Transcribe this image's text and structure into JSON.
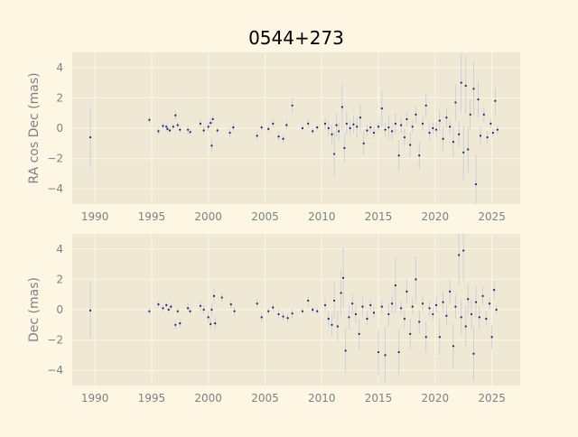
{
  "title": "0544+273",
  "colors": {
    "figure_bg": "#fdf6e3",
    "axes_bg": "#eee8d5",
    "grid": "#fdf6e3",
    "tick_text": "#7a8288",
    "point": "#1a237e",
    "errorbar": "#b8c4d6"
  },
  "chart_data": [
    {
      "type": "scatter",
      "title": "0544+273",
      "xlabel": "",
      "ylabel": "RA cos Dec (mas)",
      "xlim": [
        1988,
        2027.5
      ],
      "ylim": [
        -5,
        5
      ],
      "xticks": [
        "1990",
        "1995",
        "2000",
        "2005",
        "2010",
        "2015",
        "2020",
        "2025"
      ],
      "yticks": [
        "−4",
        "−2",
        "0",
        "2",
        "4"
      ],
      "grid": true,
      "error_bars": true,
      "points": [
        {
          "x": 1989.6,
          "y": -0.6,
          "err": 2.0
        },
        {
          "x": 1994.8,
          "y": 0.55,
          "err": 0.2
        },
        {
          "x": 1995.6,
          "y": -0.2,
          "err": 0.2
        },
        {
          "x": 1996.0,
          "y": 0.15,
          "err": 0.2
        },
        {
          "x": 1996.3,
          "y": 0.1,
          "err": 0.2
        },
        {
          "x": 1996.4,
          "y": -0.05,
          "err": 0.2
        },
        {
          "x": 1996.6,
          "y": -0.15,
          "err": 0.2
        },
        {
          "x": 1996.9,
          "y": 0.1,
          "err": 0.2
        },
        {
          "x": 1997.1,
          "y": 0.85,
          "err": 0.3
        },
        {
          "x": 1997.3,
          "y": 0.2,
          "err": 0.2
        },
        {
          "x": 1997.5,
          "y": -0.1,
          "err": 0.2
        },
        {
          "x": 1998.2,
          "y": -0.1,
          "err": 0.3
        },
        {
          "x": 1998.4,
          "y": -0.25,
          "err": 0.2
        },
        {
          "x": 1999.3,
          "y": 0.3,
          "err": 0.3
        },
        {
          "x": 1999.6,
          "y": -0.15,
          "err": 0.3
        },
        {
          "x": 2000.0,
          "y": 0.1,
          "err": 0.3
        },
        {
          "x": 2000.2,
          "y": 0.35,
          "err": 0.3
        },
        {
          "x": 2000.3,
          "y": -1.15,
          "err": 0.4
        },
        {
          "x": 2000.4,
          "y": 0.6,
          "err": 0.3
        },
        {
          "x": 2000.8,
          "y": -0.15,
          "err": 0.2
        },
        {
          "x": 2001.9,
          "y": -0.3,
          "err": 0.3
        },
        {
          "x": 2002.2,
          "y": 0.05,
          "err": 0.3
        },
        {
          "x": 2004.3,
          "y": -0.5,
          "err": 0.3
        },
        {
          "x": 2004.7,
          "y": 0.05,
          "err": 0.2
        },
        {
          "x": 2005.3,
          "y": -0.05,
          "err": 0.2
        },
        {
          "x": 2005.7,
          "y": 0.3,
          "err": 0.3
        },
        {
          "x": 2006.2,
          "y": -0.55,
          "err": 0.3
        },
        {
          "x": 2006.6,
          "y": -0.7,
          "err": 0.3
        },
        {
          "x": 2006.9,
          "y": 0.2,
          "err": 0.3
        },
        {
          "x": 2007.4,
          "y": 1.5,
          "err": 0.5
        },
        {
          "x": 2008.3,
          "y": 0.0,
          "err": 0.2
        },
        {
          "x": 2008.8,
          "y": 0.3,
          "err": 0.3
        },
        {
          "x": 2009.2,
          "y": -0.2,
          "err": 0.2
        },
        {
          "x": 2009.6,
          "y": 0.05,
          "err": 0.2
        },
        {
          "x": 2010.3,
          "y": 0.3,
          "err": 0.4
        },
        {
          "x": 2010.6,
          "y": 0.0,
          "err": 0.5
        },
        {
          "x": 2010.9,
          "y": -0.4,
          "err": 0.6
        },
        {
          "x": 2011.1,
          "y": -1.7,
          "err": 1.5
        },
        {
          "x": 2011.3,
          "y": 0.2,
          "err": 0.8
        },
        {
          "x": 2011.5,
          "y": -0.2,
          "err": 0.6
        },
        {
          "x": 2011.8,
          "y": 1.4,
          "err": 1.5
        },
        {
          "x": 2012.0,
          "y": -1.3,
          "err": 1.0
        },
        {
          "x": 2012.2,
          "y": 0.3,
          "err": 0.8
        },
        {
          "x": 2012.5,
          "y": 0.0,
          "err": 0.5
        },
        {
          "x": 2012.8,
          "y": 0.25,
          "err": 0.6
        },
        {
          "x": 2013.1,
          "y": 0.1,
          "err": 0.7
        },
        {
          "x": 2013.4,
          "y": 0.7,
          "err": 0.9
        },
        {
          "x": 2013.7,
          "y": -1.0,
          "err": 0.8
        },
        {
          "x": 2014.0,
          "y": -0.15,
          "err": 0.4
        },
        {
          "x": 2014.3,
          "y": 0.05,
          "err": 0.3
        },
        {
          "x": 2014.6,
          "y": -0.3,
          "err": 0.4
        },
        {
          "x": 2015.0,
          "y": 0.1,
          "err": 0.3
        },
        {
          "x": 2015.3,
          "y": 1.3,
          "err": 1.2
        },
        {
          "x": 2015.6,
          "y": -0.1,
          "err": 0.5
        },
        {
          "x": 2015.9,
          "y": 0.05,
          "err": 0.8
        },
        {
          "x": 2016.2,
          "y": -0.2,
          "err": 0.6
        },
        {
          "x": 2016.5,
          "y": 0.3,
          "err": 0.7
        },
        {
          "x": 2016.8,
          "y": -1.8,
          "err": 1.0
        },
        {
          "x": 2017.0,
          "y": 0.2,
          "err": 0.5
        },
        {
          "x": 2017.3,
          "y": -0.6,
          "err": 0.6
        },
        {
          "x": 2017.5,
          "y": 0.6,
          "err": 0.5
        },
        {
          "x": 2017.8,
          "y": -1.1,
          "err": 0.8
        },
        {
          "x": 2018.0,
          "y": 0.1,
          "err": 0.4
        },
        {
          "x": 2018.3,
          "y": 0.9,
          "err": 0.6
        },
        {
          "x": 2018.6,
          "y": -1.8,
          "err": 0.9
        },
        {
          "x": 2018.9,
          "y": 0.3,
          "err": 0.5
        },
        {
          "x": 2019.2,
          "y": 1.5,
          "err": 0.8
        },
        {
          "x": 2019.5,
          "y": -0.3,
          "err": 0.5
        },
        {
          "x": 2019.8,
          "y": 0.0,
          "err": 0.4
        },
        {
          "x": 2020.1,
          "y": -0.1,
          "err": 0.5
        },
        {
          "x": 2020.4,
          "y": 0.5,
          "err": 0.7
        },
        {
          "x": 2020.7,
          "y": -0.7,
          "err": 0.8
        },
        {
          "x": 2021.0,
          "y": 0.7,
          "err": 0.7
        },
        {
          "x": 2021.3,
          "y": 0.1,
          "err": 0.5
        },
        {
          "x": 2021.6,
          "y": -0.9,
          "err": 1.0
        },
        {
          "x": 2021.8,
          "y": 1.7,
          "err": 1.2
        },
        {
          "x": 2022.1,
          "y": -0.4,
          "err": 0.8
        },
        {
          "x": 2022.3,
          "y": 3.0,
          "err": 2.0
        },
        {
          "x": 2022.5,
          "y": -1.6,
          "err": 1.8
        },
        {
          "x": 2022.7,
          "y": 2.8,
          "err": 1.9
        },
        {
          "x": 2022.9,
          "y": -1.4,
          "err": 1.5
        },
        {
          "x": 2023.1,
          "y": 0.9,
          "err": 1.0
        },
        {
          "x": 2023.4,
          "y": 2.6,
          "err": 1.8
        },
        {
          "x": 2023.6,
          "y": -3.7,
          "err": 2.0
        },
        {
          "x": 2023.8,
          "y": 1.9,
          "err": 1.2
        },
        {
          "x": 2024.0,
          "y": -0.5,
          "err": 0.6
        },
        {
          "x": 2024.3,
          "y": 0.9,
          "err": 0.5
        },
        {
          "x": 2024.6,
          "y": -0.6,
          "err": 0.4
        },
        {
          "x": 2024.9,
          "y": 0.3,
          "err": 0.3
        },
        {
          "x": 2025.1,
          "y": -0.3,
          "err": 0.3
        },
        {
          "x": 2025.3,
          "y": 1.8,
          "err": 0.9
        },
        {
          "x": 2025.5,
          "y": -0.1,
          "err": 0.3
        }
      ]
    },
    {
      "type": "scatter",
      "xlabel": "",
      "ylabel": "Dec (mas)",
      "xlim": [
        1988,
        2027.5
      ],
      "ylim": [
        -5,
        5
      ],
      "xticks": [
        "1990",
        "1995",
        "2000",
        "2005",
        "2010",
        "2015",
        "2020",
        "2025"
      ],
      "yticks": [
        "−4",
        "−2",
        "0",
        "2",
        "4"
      ],
      "grid": true,
      "error_bars": true,
      "points": [
        {
          "x": 1989.6,
          "y": -0.05,
          "err": 1.8
        },
        {
          "x": 1994.8,
          "y": -0.1,
          "err": 0.2
        },
        {
          "x": 1995.6,
          "y": 0.35,
          "err": 0.2
        },
        {
          "x": 1996.0,
          "y": 0.1,
          "err": 0.2
        },
        {
          "x": 1996.3,
          "y": 0.3,
          "err": 0.2
        },
        {
          "x": 1996.5,
          "y": 0.0,
          "err": 0.2
        },
        {
          "x": 1996.7,
          "y": 0.2,
          "err": 0.2
        },
        {
          "x": 1997.1,
          "y": -1.0,
          "err": 0.3
        },
        {
          "x": 1997.3,
          "y": -0.1,
          "err": 0.2
        },
        {
          "x": 1997.5,
          "y": -0.9,
          "err": 0.3
        },
        {
          "x": 1998.2,
          "y": 0.1,
          "err": 0.3
        },
        {
          "x": 1998.4,
          "y": -0.1,
          "err": 0.2
        },
        {
          "x": 1999.3,
          "y": 0.25,
          "err": 0.3
        },
        {
          "x": 1999.6,
          "y": 0.0,
          "err": 0.3
        },
        {
          "x": 2000.0,
          "y": -0.5,
          "err": 0.4
        },
        {
          "x": 2000.2,
          "y": -0.95,
          "err": 0.4
        },
        {
          "x": 2000.3,
          "y": 0.0,
          "err": 0.4
        },
        {
          "x": 2000.5,
          "y": 0.9,
          "err": 0.5
        },
        {
          "x": 2000.6,
          "y": -0.9,
          "err": 0.4
        },
        {
          "x": 2001.2,
          "y": 0.8,
          "err": 0.3
        },
        {
          "x": 2002.0,
          "y": 0.35,
          "err": 0.3
        },
        {
          "x": 2002.3,
          "y": -0.1,
          "err": 0.3
        },
        {
          "x": 2004.3,
          "y": 0.4,
          "err": 0.3
        },
        {
          "x": 2004.7,
          "y": -0.5,
          "err": 0.3
        },
        {
          "x": 2005.3,
          "y": -0.1,
          "err": 0.2
        },
        {
          "x": 2005.7,
          "y": 0.15,
          "err": 0.3
        },
        {
          "x": 2006.2,
          "y": -0.3,
          "err": 0.3
        },
        {
          "x": 2006.6,
          "y": -0.45,
          "err": 0.3
        },
        {
          "x": 2007.0,
          "y": -0.55,
          "err": 0.3
        },
        {
          "x": 2007.4,
          "y": -0.25,
          "err": 0.3
        },
        {
          "x": 2008.3,
          "y": -0.1,
          "err": 0.2
        },
        {
          "x": 2008.8,
          "y": 0.6,
          "err": 0.4
        },
        {
          "x": 2009.2,
          "y": 0.0,
          "err": 0.2
        },
        {
          "x": 2009.6,
          "y": -0.1,
          "err": 0.2
        },
        {
          "x": 2010.3,
          "y": 0.3,
          "err": 0.4
        },
        {
          "x": 2010.6,
          "y": -0.6,
          "err": 0.5
        },
        {
          "x": 2010.9,
          "y": -1.0,
          "err": 0.7
        },
        {
          "x": 2011.1,
          "y": 0.6,
          "err": 1.2
        },
        {
          "x": 2011.4,
          "y": -1.1,
          "err": 1.0
        },
        {
          "x": 2011.7,
          "y": 1.1,
          "err": 1.5
        },
        {
          "x": 2011.9,
          "y": 2.1,
          "err": 2.0
        },
        {
          "x": 2012.1,
          "y": -2.7,
          "err": 1.5
        },
        {
          "x": 2012.4,
          "y": -0.5,
          "err": 0.8
        },
        {
          "x": 2012.7,
          "y": 0.4,
          "err": 0.7
        },
        {
          "x": 2013.0,
          "y": -0.3,
          "err": 0.6
        },
        {
          "x": 2013.3,
          "y": -1.6,
          "err": 1.0
        },
        {
          "x": 2013.6,
          "y": 0.2,
          "err": 0.6
        },
        {
          "x": 2014.0,
          "y": -0.6,
          "err": 0.5
        },
        {
          "x": 2014.3,
          "y": 0.3,
          "err": 0.4
        },
        {
          "x": 2014.6,
          "y": -0.2,
          "err": 0.4
        },
        {
          "x": 2015.0,
          "y": -2.8,
          "err": 1.5
        },
        {
          "x": 2015.3,
          "y": 0.2,
          "err": 0.5
        },
        {
          "x": 2015.6,
          "y": -3.0,
          "err": 1.8
        },
        {
          "x": 2015.9,
          "y": -0.3,
          "err": 0.8
        },
        {
          "x": 2016.2,
          "y": 0.4,
          "err": 0.6
        },
        {
          "x": 2016.5,
          "y": 1.6,
          "err": 1.8
        },
        {
          "x": 2016.8,
          "y": -2.8,
          "err": 1.5
        },
        {
          "x": 2017.0,
          "y": 0.1,
          "err": 0.5
        },
        {
          "x": 2017.3,
          "y": -0.6,
          "err": 0.6
        },
        {
          "x": 2017.5,
          "y": 1.2,
          "err": 0.8
        },
        {
          "x": 2017.8,
          "y": -1.6,
          "err": 1.0
        },
        {
          "x": 2018.0,
          "y": 0.2,
          "err": 0.5
        },
        {
          "x": 2018.3,
          "y": 2.0,
          "err": 1.5
        },
        {
          "x": 2018.6,
          "y": -0.8,
          "err": 0.8
        },
        {
          "x": 2018.9,
          "y": 0.4,
          "err": 0.5
        },
        {
          "x": 2019.2,
          "y": -1.8,
          "err": 1.0
        },
        {
          "x": 2019.5,
          "y": 0.1,
          "err": 0.5
        },
        {
          "x": 2019.8,
          "y": -0.3,
          "err": 0.4
        },
        {
          "x": 2020.1,
          "y": 0.3,
          "err": 0.5
        },
        {
          "x": 2020.4,
          "y": -1.8,
          "err": 1.2
        },
        {
          "x": 2020.7,
          "y": 0.5,
          "err": 0.7
        },
        {
          "x": 2021.0,
          "y": -0.4,
          "err": 0.7
        },
        {
          "x": 2021.3,
          "y": 1.2,
          "err": 0.8
        },
        {
          "x": 2021.6,
          "y": -2.4,
          "err": 1.5
        },
        {
          "x": 2021.8,
          "y": 0.2,
          "err": 0.8
        },
        {
          "x": 2022.1,
          "y": 3.6,
          "err": 2.0
        },
        {
          "x": 2022.3,
          "y": -0.5,
          "err": 1.2
        },
        {
          "x": 2022.5,
          "y": 3.9,
          "err": 2.0
        },
        {
          "x": 2022.7,
          "y": -1.1,
          "err": 1.3
        },
        {
          "x": 2022.9,
          "y": 0.7,
          "err": 1.0
        },
        {
          "x": 2023.2,
          "y": -0.3,
          "err": 1.0
        },
        {
          "x": 2023.4,
          "y": -2.9,
          "err": 1.8
        },
        {
          "x": 2023.6,
          "y": 0.5,
          "err": 1.0
        },
        {
          "x": 2023.9,
          "y": -0.5,
          "err": 0.8
        },
        {
          "x": 2024.2,
          "y": 0.9,
          "err": 0.6
        },
        {
          "x": 2024.5,
          "y": -0.6,
          "err": 0.5
        },
        {
          "x": 2024.8,
          "y": 0.4,
          "err": 0.4
        },
        {
          "x": 2025.0,
          "y": -1.8,
          "err": 0.8
        },
        {
          "x": 2025.2,
          "y": 1.3,
          "err": 0.6
        },
        {
          "x": 2025.4,
          "y": 0.0,
          "err": 0.3
        }
      ]
    }
  ]
}
